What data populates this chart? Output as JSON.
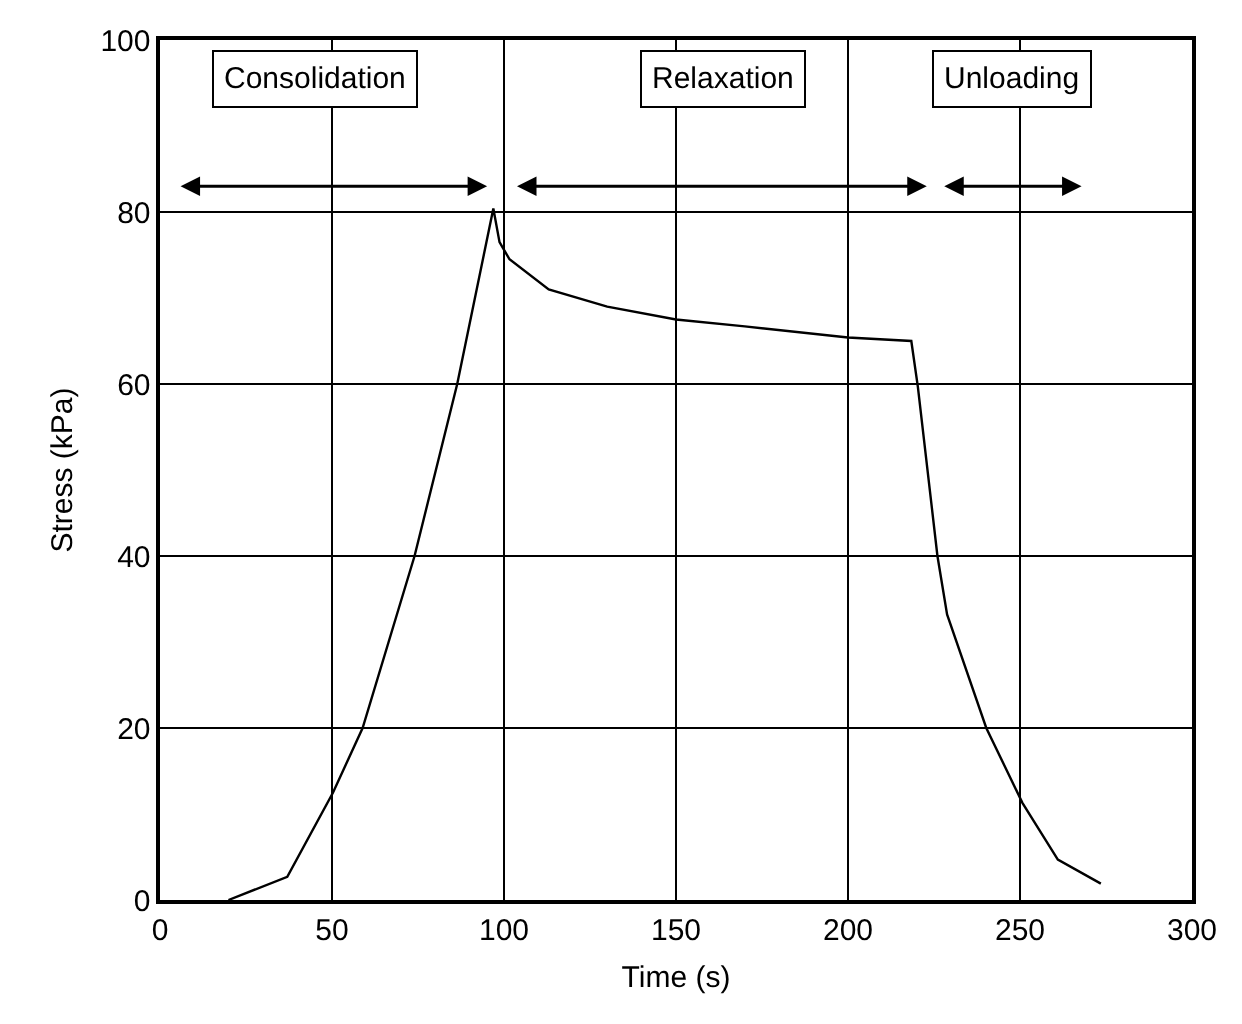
{
  "chart_data": {
    "type": "line",
    "xlabel": "Time (s)",
    "ylabel": "Stress (kPa)",
    "series": [
      {
        "color": "#000000",
        "x": [
          19.9,
          37,
          50.3,
          58.9,
          74,
          86.4,
          96.9,
          98.7,
          101.6,
          113,
          130,
          150,
          170,
          200,
          218.4,
          220.3,
          226,
          228.8,
          240.2,
          250.7,
          261,
          273.5
        ],
        "values": [
          0,
          2.7,
          12.5,
          20,
          40,
          60,
          80.4,
          76.5,
          74.5,
          71,
          69,
          67.5,
          66.7,
          65.4,
          65,
          59.7,
          40,
          33.2,
          20,
          11.3,
          4.7,
          1.9
        ]
      }
    ],
    "xlim": [
      0,
      300
    ],
    "xticks": [
      0,
      50,
      100,
      150,
      200,
      250,
      300
    ],
    "ylim": [
      0,
      100
    ],
    "yticks": [
      0,
      20,
      40,
      60,
      80,
      100
    ],
    "grid": true,
    "marker": "none",
    "line_style": "solid",
    "annotations": [
      "Consolidation",
      "Relaxation",
      "Unloading"
    ]
  }
}
